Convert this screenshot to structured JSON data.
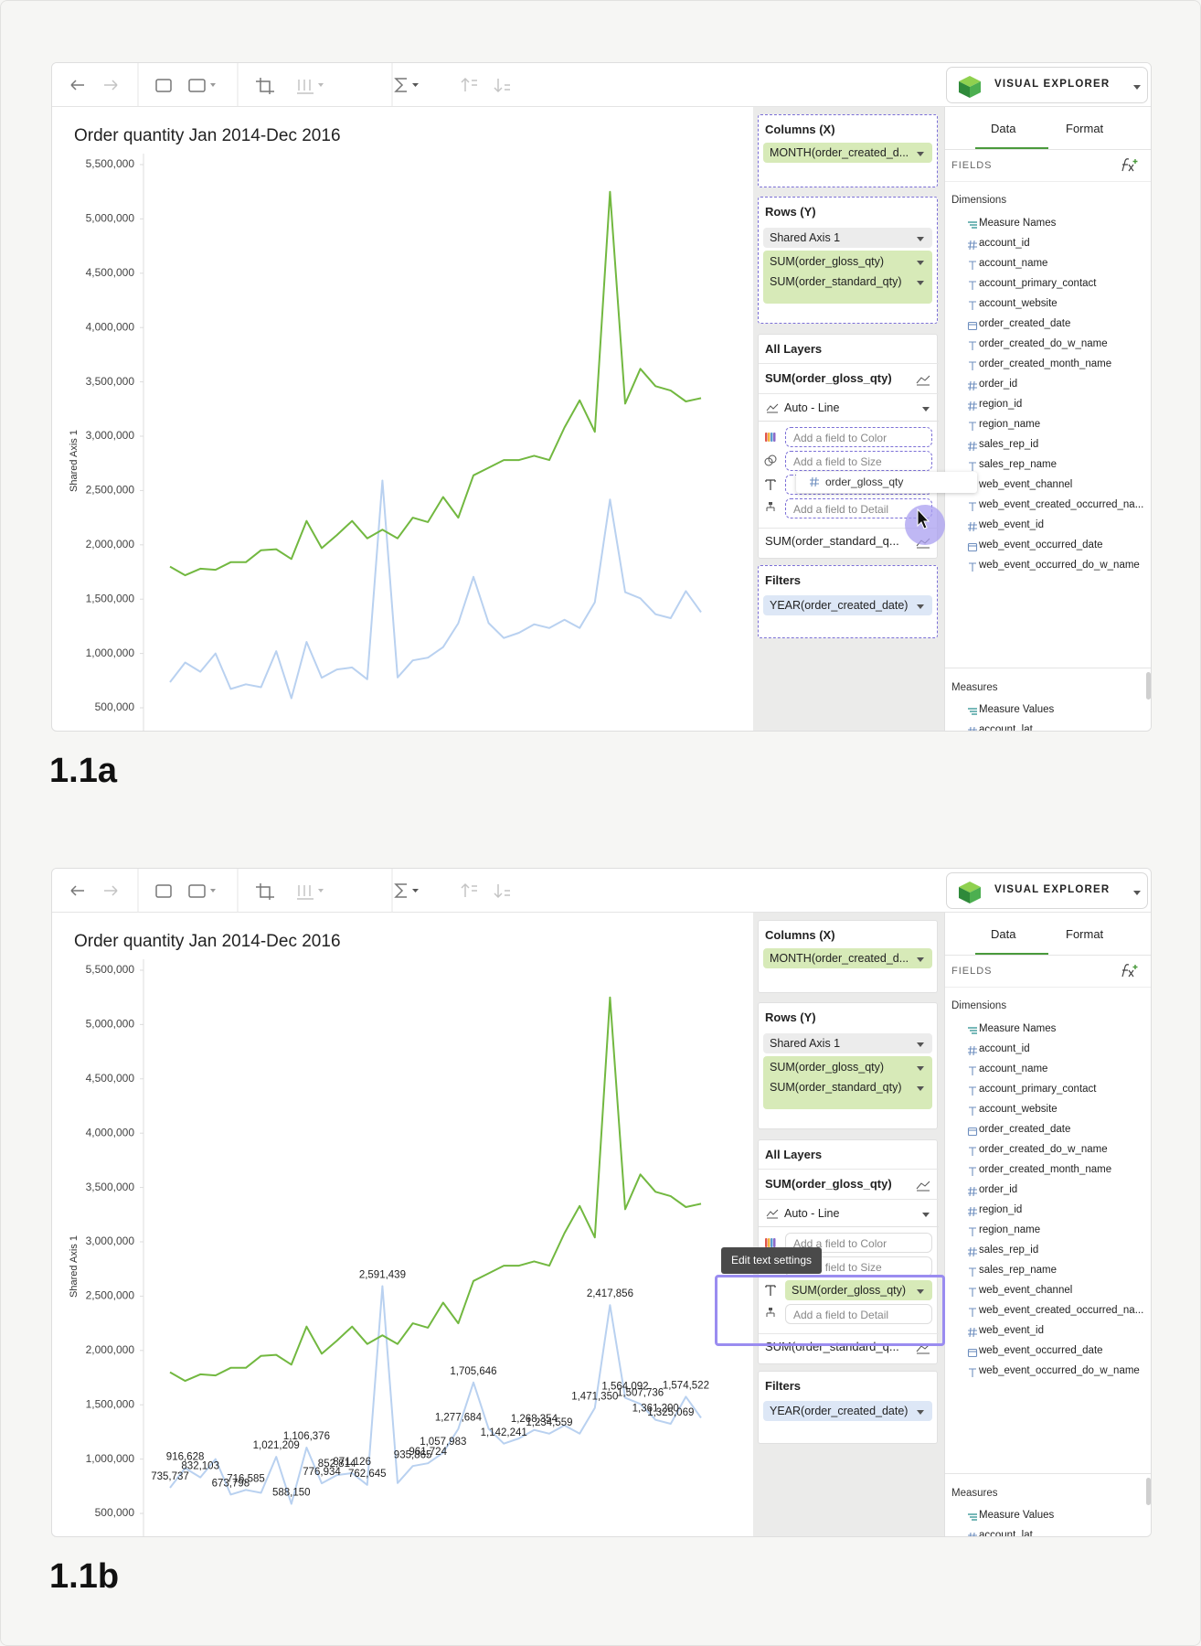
{
  "chart_data": [
    {
      "type": "line",
      "title": "Order quantity Jan 2014-Dec 2016",
      "y_label": "Shared Axis 1",
      "ylim": [
        273000,
        5567000
      ],
      "yticks": [
        {
          "value": 500000,
          "label": "500,000"
        },
        {
          "value": 1000000,
          "label": "1,000,000"
        },
        {
          "value": 1500000,
          "label": "1,500,000"
        },
        {
          "value": 2000000,
          "label": "2,000,000"
        },
        {
          "value": 2500000,
          "label": "2,500,000"
        },
        {
          "value": 3000000,
          "label": "3,000,000"
        },
        {
          "value": 3500000,
          "label": "3,500,000"
        },
        {
          "value": 4000000,
          "label": "4,000,000"
        },
        {
          "value": 4500000,
          "label": "4,500,000"
        },
        {
          "value": 5000000,
          "label": "5,000,000"
        },
        {
          "value": 5500000,
          "label": "5,500,000"
        }
      ],
      "grid": false,
      "series": [
        {
          "color": "#b9d1f0",
          "values": [
            735737,
            916628,
            832103,
            1000000,
            673798,
            716585,
            690000,
            1021209,
            588150,
            1106376,
            776934,
            852814,
            871126,
            762645,
            2591439,
            780000,
            935865,
            961724,
            1057983,
            1277684,
            1705646,
            1280000,
            1142241,
            1190000,
            1268354,
            1234559,
            1310000,
            1235000,
            1471350,
            2417856,
            1564092,
            1507736,
            1361200,
            1325069,
            1574522,
            1380000
          ]
        },
        {
          "color": "#72b840",
          "values": [
            1800000,
            1720000,
            1780000,
            1770000,
            1840000,
            1840000,
            1950000,
            1960000,
            1870000,
            2220000,
            1970000,
            2090000,
            2220000,
            2060000,
            2140000,
            2060000,
            2250000,
            2210000,
            2440000,
            2250000,
            2640000,
            2710000,
            2780000,
            2780000,
            2820000,
            2780000,
            3080000,
            3330000,
            3040000,
            5250000,
            3300000,
            3620000,
            3460000,
            3420000,
            3320000,
            3350000
          ]
        }
      ]
    },
    {
      "type": "line",
      "title": "Order quantity Jan 2014-Dec 2016",
      "y_label": "Shared Axis 1",
      "ylim": [
        273000,
        5567000
      ],
      "yticks": [
        {
          "value": 500000,
          "label": "500,000"
        },
        {
          "value": 1000000,
          "label": "1,000,000"
        },
        {
          "value": 1500000,
          "label": "1,500,000"
        },
        {
          "value": 2000000,
          "label": "2,000,000"
        },
        {
          "value": 2500000,
          "label": "2,500,000"
        },
        {
          "value": 3000000,
          "label": "3,000,000"
        },
        {
          "value": 3500000,
          "label": "3,500,000"
        },
        {
          "value": 4000000,
          "label": "4,000,000"
        },
        {
          "value": 4500000,
          "label": "4,500,000"
        },
        {
          "value": 5000000,
          "label": "5,000,000"
        },
        {
          "value": 5500000,
          "label": "5,500,000"
        }
      ],
      "grid": false,
      "series": [
        {
          "color": "#b9d1f0",
          "values": [
            735737,
            916628,
            832103,
            1000000,
            673798,
            716585,
            690000,
            1021209,
            588150,
            1106376,
            776934,
            852814,
            871126,
            762645,
            2591439,
            780000,
            935865,
            961724,
            1057983,
            1277684,
            1705646,
            1280000,
            1142241,
            1190000,
            1268354,
            1234559,
            1310000,
            1235000,
            1471350,
            2417856,
            1564092,
            1507736,
            1361200,
            1325069,
            1574522,
            1380000
          ],
          "value_labels": [
            "735,737",
            "916,628",
            "832,103",
            null,
            "673,798",
            "716,585",
            null,
            "1,021,209",
            "588,150",
            "1,106,376",
            "776,934",
            "852,814",
            "871,126",
            "762,645",
            "2,591,439",
            null,
            "935,865",
            "961,724",
            "1,057,983",
            "1,277,684",
            "1,705,646",
            null,
            "1,142,241",
            null,
            "1,268,354",
            "1,234,559",
            null,
            null,
            "1,471,350",
            "2,417,856",
            "1,564,092",
            "1,507,736",
            "1,361,200",
            "1,325,069",
            "1,574,522",
            null
          ]
        },
        {
          "color": "#72b840",
          "values": [
            1800000,
            1720000,
            1780000,
            1770000,
            1840000,
            1840000,
            1950000,
            1960000,
            1870000,
            2220000,
            1970000,
            2090000,
            2220000,
            2060000,
            2140000,
            2060000,
            2250000,
            2210000,
            2440000,
            2250000,
            2640000,
            2710000,
            2780000,
            2780000,
            2820000,
            2780000,
            3080000,
            3330000,
            3040000,
            5250000,
            3300000,
            3620000,
            3460000,
            3420000,
            3320000,
            3350000
          ]
        }
      ]
    }
  ],
  "screens": [
    {
      "caption": "1.1a",
      "brand": "VISUAL EXPLORER",
      "columns": {
        "label": "Columns (X)",
        "pill": "MONTH(order_created_d..."
      },
      "rows": {
        "label": "Rows (Y)",
        "axis": "Shared Axis 1",
        "pills": [
          "SUM(order_gloss_qty)",
          "SUM(order_standard_qty)"
        ]
      },
      "layers": {
        "label": "All Layers",
        "layer": "SUM(order_gloss_qty)",
        "mark": "Auto - Line",
        "slots": [
          {
            "kind": "color",
            "state": "empty",
            "text": "Add a field to Color"
          },
          {
            "kind": "size",
            "state": "empty",
            "text": "Add a field to Size"
          },
          {
            "kind": "text",
            "state": "empty",
            "text": null
          },
          {
            "kind": "detail",
            "state": "empty",
            "text": "Add a field to Detail"
          }
        ],
        "next_layer": "SUM(order_standard_q..."
      },
      "filters": {
        "label": "Filters",
        "pill": "YEAR(order_created_date)"
      },
      "tabs": [
        "Data",
        "Format"
      ],
      "fields_label": "FIELDS",
      "dimensions_label": "Dimensions",
      "dimensions": [
        {
          "kind": "measure",
          "name": "Measure Names"
        },
        {
          "kind": "number",
          "name": "account_id"
        },
        {
          "kind": "text",
          "name": "account_name"
        },
        {
          "kind": "text",
          "name": "account_primary_contact"
        },
        {
          "kind": "text",
          "name": "account_website"
        },
        {
          "kind": "date",
          "name": "order_created_date"
        },
        {
          "kind": "text",
          "name": "order_created_do_w_name"
        },
        {
          "kind": "text",
          "name": "order_created_month_name"
        },
        {
          "kind": "number",
          "name": "order_id"
        },
        {
          "kind": "number",
          "name": "region_id"
        },
        {
          "kind": "text",
          "name": "region_name"
        },
        {
          "kind": "number",
          "name": "sales_rep_id"
        },
        {
          "kind": "text",
          "name": "sales_rep_name"
        },
        {
          "kind": "text",
          "name": "web_event_channel"
        },
        {
          "kind": "text",
          "name": "web_event_created_occurred_na..."
        },
        {
          "kind": "number",
          "name": "web_event_id"
        },
        {
          "kind": "date",
          "name": "web_event_occurred_date"
        },
        {
          "kind": "text",
          "name": "web_event_occurred_do_w_name"
        }
      ],
      "measures_label": "Measures",
      "measures": [
        {
          "kind": "measure",
          "name": "Measure Values"
        },
        {
          "kind": "number",
          "name": "account_lat"
        }
      ],
      "dragging": "order_gloss_qty"
    },
    {
      "caption": "1.1b",
      "brand": "VISUAL EXPLORER",
      "columns": {
        "label": "Columns (X)",
        "pill": "MONTH(order_created_d..."
      },
      "rows": {
        "label": "Rows (Y)",
        "axis": "Shared Axis 1",
        "pills": [
          "SUM(order_gloss_qty)",
          "SUM(order_standard_qty)"
        ]
      },
      "layers": {
        "label": "All Layers",
        "layer": "SUM(order_gloss_qty)",
        "mark": "Auto - Line",
        "slots": [
          {
            "kind": "color",
            "state": "empty",
            "text": "Add a field to Color"
          },
          {
            "kind": "size",
            "state": "empty",
            "text": "Add a field to Size"
          },
          {
            "kind": "text",
            "state": "filled",
            "text": "SUM(order_gloss_qty)"
          },
          {
            "kind": "detail",
            "state": "empty",
            "text": "Add a field to Detail"
          }
        ],
        "next_layer": "SUM(order_standard_q..."
      },
      "filters": {
        "label": "Filters",
        "pill": "YEAR(order_created_date)"
      },
      "tabs": [
        "Data",
        "Format"
      ],
      "fields_label": "FIELDS",
      "dimensions_label": "Dimensions",
      "dimensions": [
        {
          "kind": "measure",
          "name": "Measure Names"
        },
        {
          "kind": "number",
          "name": "account_id"
        },
        {
          "kind": "text",
          "name": "account_name"
        },
        {
          "kind": "text",
          "name": "account_primary_contact"
        },
        {
          "kind": "text",
          "name": "account_website"
        },
        {
          "kind": "date",
          "name": "order_created_date"
        },
        {
          "kind": "text",
          "name": "order_created_do_w_name"
        },
        {
          "kind": "text",
          "name": "order_created_month_name"
        },
        {
          "kind": "number",
          "name": "order_id"
        },
        {
          "kind": "number",
          "name": "region_id"
        },
        {
          "kind": "text",
          "name": "region_name"
        },
        {
          "kind": "number",
          "name": "sales_rep_id"
        },
        {
          "kind": "text",
          "name": "sales_rep_name"
        },
        {
          "kind": "text",
          "name": "web_event_channel"
        },
        {
          "kind": "text",
          "name": "web_event_created_occurred_na..."
        },
        {
          "kind": "number",
          "name": "web_event_id"
        },
        {
          "kind": "date",
          "name": "web_event_occurred_date"
        },
        {
          "kind": "text",
          "name": "web_event_occurred_do_w_name"
        }
      ],
      "measures_label": "Measures",
      "measures": [
        {
          "kind": "measure",
          "name": "Measure Values"
        },
        {
          "kind": "number",
          "name": "account_lat"
        }
      ],
      "tooltip": "Edit text settings"
    }
  ]
}
